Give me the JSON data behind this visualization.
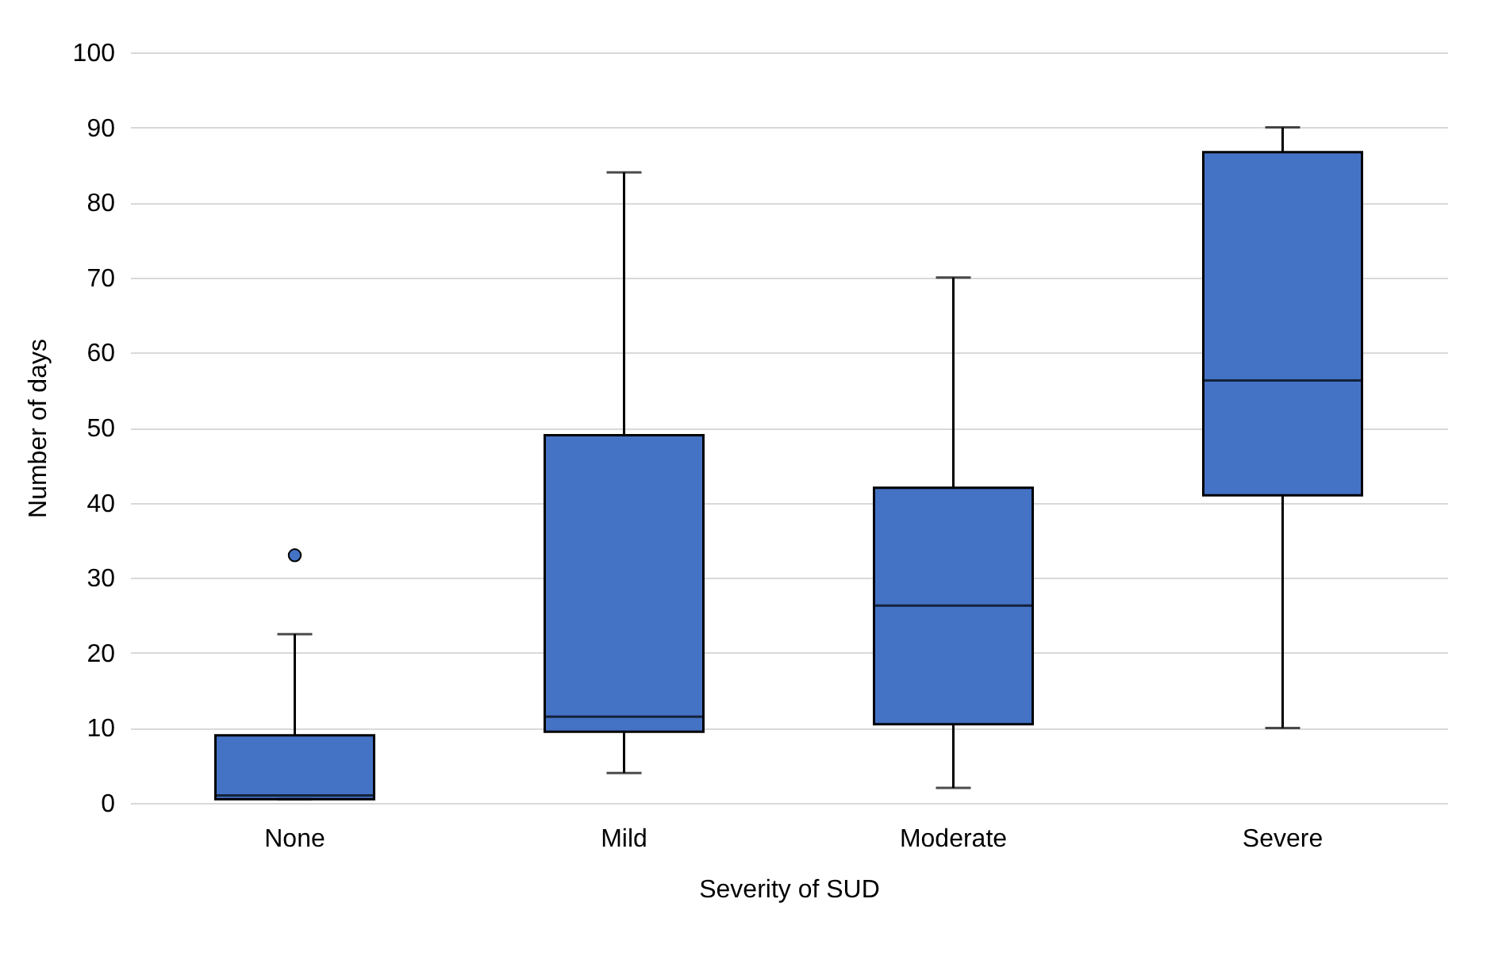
{
  "chart_data": {
    "type": "box",
    "xlabel": "Severity of SUD",
    "ylabel": "Number of days",
    "categories": [
      "None",
      "Mild",
      "Moderate",
      "Severe"
    ],
    "boxes": [
      {
        "low": 0.5,
        "q1": 0.5,
        "median": 1,
        "q3": 9,
        "high": 22.5,
        "outliers": [
          33
        ]
      },
      {
        "low": 4,
        "q1": 9.5,
        "median": 11.5,
        "q3": 49,
        "high": 84
      },
      {
        "low": 2,
        "q1": 10.5,
        "median": 26.3,
        "q3": 42,
        "high": 70
      },
      {
        "low": 10,
        "q1": 41,
        "median": 56.3,
        "q3": 86.7,
        "high": 90
      }
    ],
    "color": "#4472c4",
    "ylim": [
      0,
      100
    ],
    "yticks": [
      0,
      10,
      20,
      30,
      40,
      50,
      60,
      70,
      80,
      90,
      100
    ],
    "grid": "y"
  }
}
